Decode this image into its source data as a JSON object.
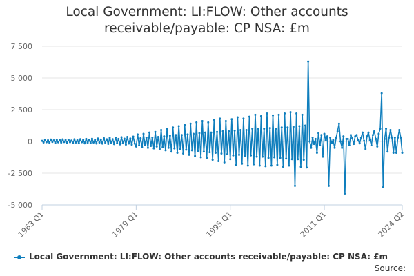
{
  "title_line1": "Local Government: LI:FLOW: Other accounts",
  "title_line2": "receivable/payable: CP NSA: £m",
  "source_label": "Source:",
  "colors": {
    "series": "#0f7ebd",
    "grid": "#e6e6e6",
    "axis": "#c0d0e0",
    "text": "#666666"
  },
  "chart_data": {
    "type": "line",
    "title": "Local Government: LI:FLOW: Other accounts receivable/payable: CP NSA: £m",
    "xlabel": "",
    "ylabel": "",
    "ylim": [
      -5000,
      7500
    ],
    "yticks": [
      -5000,
      -2500,
      0,
      2500,
      5000,
      7500
    ],
    "ytick_labels": [
      "-5 000",
      "-2 500",
      "0",
      "2 500",
      "5 000",
      "7 500"
    ],
    "x_start": "1963 Q1",
    "x_end": "2024 Q2",
    "n_points": 246,
    "xticks": [
      {
        "index": 0,
        "label": "1963 Q1"
      },
      {
        "index": 64,
        "label": "1979 Q1"
      },
      {
        "index": 128,
        "label": "1995 Q1"
      },
      {
        "index": 192,
        "label": "2011 Q1"
      },
      {
        "index": 245,
        "label": "2024 Q2"
      }
    ],
    "grid": true,
    "legend": "bottom",
    "series": [
      {
        "name": "Local Government: LI:FLOW: Other accounts receivable/payable: CP NSA: £m",
        "values": [
          50,
          -80,
          120,
          -60,
          90,
          -100,
          150,
          -40,
          80,
          -120,
          140,
          -70,
          100,
          -90,
          160,
          -50,
          110,
          -110,
          130,
          -60,
          70,
          -130,
          170,
          -80,
          90,
          -140,
          180,
          -60,
          120,
          -150,
          200,
          -100,
          100,
          -120,
          210,
          -80,
          140,
          -160,
          230,
          -90,
          150,
          -170,
          260,
          -100,
          170,
          -190,
          280,
          -120,
          180,
          -210,
          300,
          -130,
          200,
          -230,
          330,
          -140,
          220,
          -250,
          350,
          -160,
          230,
          -260,
          380,
          -170,
          -400,
          550,
          -300,
          250,
          -450,
          600,
          -300,
          300,
          -500,
          700,
          -350,
          300,
          -550,
          750,
          -400,
          350,
          -600,
          900,
          -450,
          400,
          -700,
          1000,
          -500,
          450,
          -800,
          1100,
          -550,
          500,
          -900,
          1200,
          -600,
          500,
          -950,
          1300,
          -650,
          550,
          -1050,
          1400,
          -700,
          600,
          -1150,
          1500,
          -750,
          650,
          -1250,
          1600,
          -800,
          700,
          -1300,
          1500,
          -850,
          700,
          -1450,
          1700,
          -900,
          750,
          -1550,
          1800,
          -950,
          800,
          -1650,
          1600,
          -1000,
          800,
          -1400,
          1750,
          -1100,
          850,
          -1850,
          1900,
          -1050,
          900,
          -1750,
          1800,
          -1150,
          900,
          -1900,
          1950,
          -1100,
          1000,
          -1800,
          2100,
          -1200,
          1000,
          -1900,
          2000,
          -1200,
          1000,
          -1950,
          2200,
          -1300,
          1050,
          -1900,
          2050,
          -1250,
          1000,
          -1850,
          2100,
          -1300,
          1100,
          -2000,
          2200,
          -1350,
          1100,
          -1900,
          2300,
          -1400,
          1150,
          -3500,
          2200,
          -1400,
          1200,
          -2000,
          2100,
          -1450,
          1250,
          -2050,
          6300,
          0,
          -500,
          300,
          -200,
          200,
          -900,
          650,
          -300,
          500,
          -1200,
          600,
          100,
          400,
          -3500,
          300,
          -100,
          100,
          -500,
          300,
          800,
          1400,
          0,
          -500,
          400,
          -4100,
          200,
          200,
          -300,
          500,
          250,
          -200,
          400,
          500,
          100,
          -150,
          300,
          700,
          50,
          -600,
          400,
          700,
          100,
          -300,
          500,
          800,
          200,
          -400,
          600,
          1000,
          3800,
          -3600,
          200,
          1000,
          -800,
          300,
          900,
          300,
          -900,
          300,
          -900,
          300,
          900,
          300,
          -900
        ]
      }
    ]
  }
}
